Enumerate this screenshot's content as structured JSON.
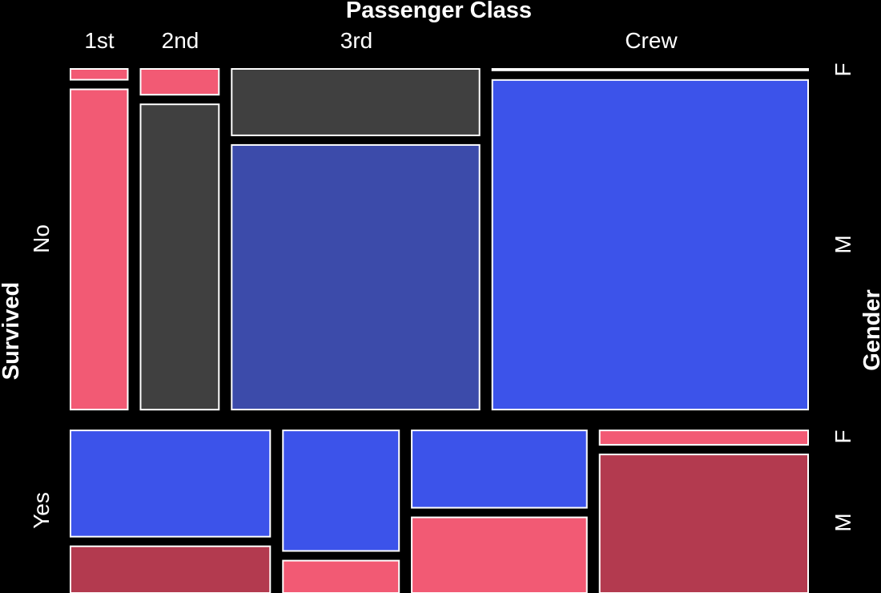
{
  "chart_data": {
    "type": "mosaic",
    "title": "",
    "variables": {
      "top": {
        "name": "Passenger Class",
        "levels": [
          "1st",
          "2nd",
          "3rd",
          "Crew"
        ]
      },
      "left": {
        "name": "Survived",
        "levels": [
          "No",
          "Yes"
        ]
      },
      "right": {
        "name": "Gender",
        "levels": [
          "F",
          "M"
        ]
      }
    },
    "panels": [
      {
        "survived": "No",
        "cells": [
          {
            "class": "1st",
            "gender": "F",
            "count": 4,
            "color": "#f25a74"
          },
          {
            "class": "1st",
            "gender": "M",
            "count": 118,
            "color": "#f25a74"
          },
          {
            "class": "2nd",
            "gender": "F",
            "count": 13,
            "color": "#f25a74"
          },
          {
            "class": "2nd",
            "gender": "M",
            "count": 154,
            "color": "#404040"
          },
          {
            "class": "3rd",
            "gender": "F",
            "count": 106,
            "color": "#404040"
          },
          {
            "class": "3rd",
            "gender": "M",
            "count": 422,
            "color": "#3c4baa"
          },
          {
            "class": "Crew",
            "gender": "F",
            "count": 3,
            "color": "#3c53ea"
          },
          {
            "class": "Crew",
            "gender": "M",
            "count": 670,
            "color": "#3c53ea"
          }
        ]
      },
      {
        "survived": "Yes",
        "cells": [
          {
            "class": "1st",
            "gender": "F",
            "count": 141,
            "color": "#3c53ea"
          },
          {
            "class": "1st",
            "gender": "M",
            "count": 62,
            "color": "#b33a4f"
          },
          {
            "class": "2nd",
            "gender": "F",
            "count": 93,
            "color": "#3c53ea"
          },
          {
            "class": "2nd",
            "gender": "M",
            "count": 25,
            "color": "#f25a74"
          },
          {
            "class": "3rd",
            "gender": "F",
            "count": 90,
            "color": "#3c53ea"
          },
          {
            "class": "3rd",
            "gender": "M",
            "count": 88,
            "color": "#f25a74"
          },
          {
            "class": "Crew",
            "gender": "F",
            "count": 20,
            "color": "#f25a74"
          },
          {
            "class": "Crew",
            "gender": "M",
            "count": 192,
            "color": "#b33a4f"
          }
        ]
      }
    ]
  }
}
